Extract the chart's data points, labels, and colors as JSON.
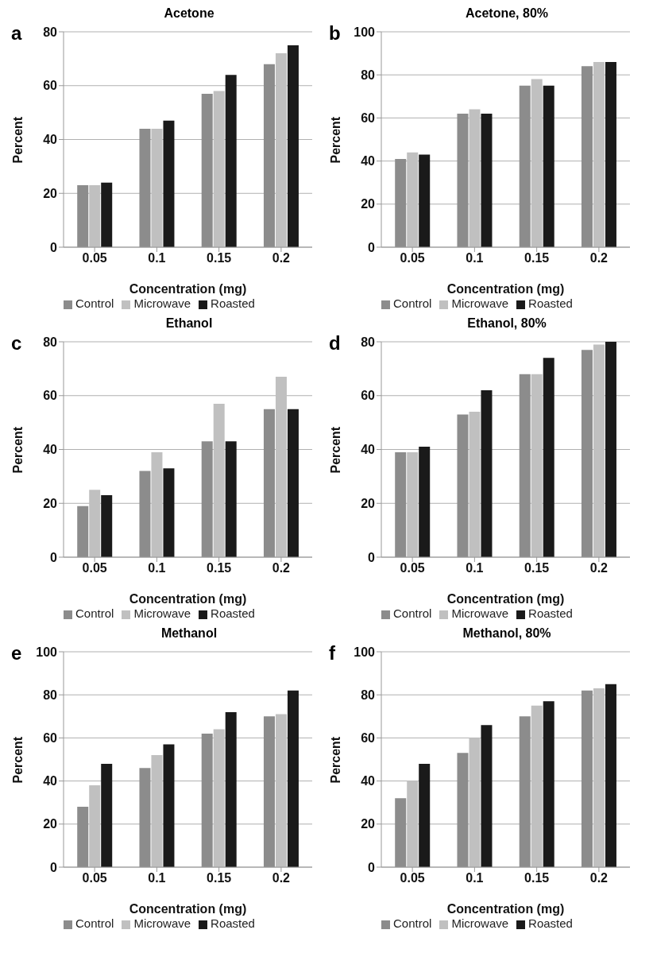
{
  "chart_data": [
    {
      "type": "bar",
      "title": "Acetone",
      "annotations": [
        "a"
      ],
      "xlabel": "Concentration (mg)",
      "ylabel": "Percent",
      "categories": [
        "0.05",
        "0.1",
        "0.15",
        "0.2"
      ],
      "ylim": [
        0,
        80
      ],
      "yticks": [
        0,
        20,
        40,
        60,
        80
      ],
      "grid": "y",
      "legend": "bottom",
      "series": [
        {
          "name": "Control",
          "color": "#8c8c8c",
          "values": [
            23,
            44,
            57,
            68
          ]
        },
        {
          "name": "Microwave",
          "color": "#c0c0c0",
          "values": [
            23,
            44,
            58,
            72
          ]
        },
        {
          "name": "Roasted",
          "color": "#1a1a1a",
          "values": [
            24,
            47,
            64,
            75
          ]
        }
      ]
    },
    {
      "type": "bar",
      "title": "Acetone, 80%",
      "annotations": [
        "b"
      ],
      "xlabel": "Concentration (mg)",
      "ylabel": "Percent",
      "categories": [
        "0.05",
        "0.1",
        "0.15",
        "0.2"
      ],
      "ylim": [
        0,
        100
      ],
      "yticks": [
        0,
        20,
        40,
        60,
        80,
        100
      ],
      "grid": "y",
      "legend": "bottom",
      "series": [
        {
          "name": "Control",
          "color": "#8c8c8c",
          "values": [
            41,
            62,
            75,
            84
          ]
        },
        {
          "name": "Microwave",
          "color": "#c0c0c0",
          "values": [
            44,
            64,
            78,
            86
          ]
        },
        {
          "name": "Roasted",
          "color": "#1a1a1a",
          "values": [
            43,
            62,
            75,
            86
          ]
        }
      ]
    },
    {
      "type": "bar",
      "title": "Ethanol",
      "annotations": [
        "c"
      ],
      "xlabel": "Concentration (mg)",
      "ylabel": "Percent",
      "categories": [
        "0.05",
        "0.1",
        "0.15",
        "0.2"
      ],
      "ylim": [
        0,
        80
      ],
      "yticks": [
        0,
        20,
        40,
        60,
        80
      ],
      "grid": "y",
      "legend": "bottom",
      "series": [
        {
          "name": "Control",
          "color": "#8c8c8c",
          "values": [
            19,
            32,
            43,
            55
          ]
        },
        {
          "name": "Microwave",
          "color": "#c0c0c0",
          "values": [
            25,
            39,
            57,
            67
          ]
        },
        {
          "name": "Roasted",
          "color": "#1a1a1a",
          "values": [
            23,
            33,
            43,
            55
          ]
        }
      ]
    },
    {
      "type": "bar",
      "title": "Ethanol, 80%",
      "annotations": [
        "d"
      ],
      "xlabel": "Concentration (mg)",
      "ylabel": "Percent",
      "categories": [
        "0.05",
        "0.1",
        "0.15",
        "0.2"
      ],
      "ylim": [
        0,
        80
      ],
      "yticks": [
        0,
        20,
        40,
        60,
        80
      ],
      "grid": "y",
      "legend": "bottom",
      "series": [
        {
          "name": "Control",
          "color": "#8c8c8c",
          "values": [
            39,
            53,
            68,
            77
          ]
        },
        {
          "name": "Microwave",
          "color": "#c0c0c0",
          "values": [
            39,
            54,
            68,
            79
          ]
        },
        {
          "name": "Roasted",
          "color": "#1a1a1a",
          "values": [
            41,
            62,
            74,
            80
          ]
        }
      ]
    },
    {
      "type": "bar",
      "title": "Methanol",
      "annotations": [
        "e"
      ],
      "xlabel": "Concentration (mg)",
      "ylabel": "Percent",
      "categories": [
        "0.05",
        "0.1",
        "0.15",
        "0.2"
      ],
      "ylim": [
        0,
        100
      ],
      "yticks": [
        0,
        20,
        40,
        60,
        80,
        100
      ],
      "grid": "y",
      "legend": "bottom",
      "series": [
        {
          "name": "Control",
          "color": "#8c8c8c",
          "values": [
            28,
            46,
            62,
            70
          ]
        },
        {
          "name": "Microwave",
          "color": "#c0c0c0",
          "values": [
            38,
            52,
            64,
            71
          ]
        },
        {
          "name": "Roasted",
          "color": "#1a1a1a",
          "values": [
            48,
            57,
            72,
            82
          ]
        }
      ]
    },
    {
      "type": "bar",
      "title": "Methanol, 80%",
      "annotations": [
        "f"
      ],
      "xlabel": "Concentration (mg)",
      "ylabel": "Percent",
      "categories": [
        "0.05",
        "0.1",
        "0.15",
        "0.2"
      ],
      "ylim": [
        0,
        100
      ],
      "yticks": [
        0,
        20,
        40,
        60,
        80,
        100
      ],
      "grid": "y",
      "legend": "bottom",
      "series": [
        {
          "name": "Control",
          "color": "#8c8c8c",
          "values": [
            32,
            53,
            70,
            82
          ]
        },
        {
          "name": "Microwave",
          "color": "#c0c0c0",
          "values": [
            40,
            60,
            75,
            83
          ]
        },
        {
          "name": "Roasted",
          "color": "#1a1a1a",
          "values": [
            48,
            66,
            77,
            85
          ]
        }
      ]
    }
  ]
}
